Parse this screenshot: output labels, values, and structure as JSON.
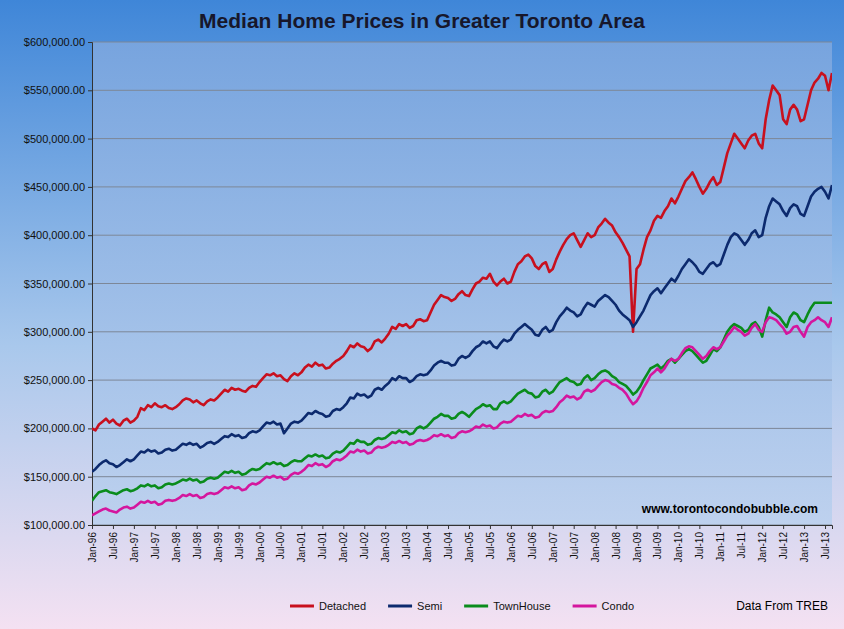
{
  "chart_data": {
    "type": "line",
    "title": "Median Home Prices in Greater Toronto Area",
    "annotations": [
      "www.torontocondobubble.com",
      "Data From TREB"
    ],
    "grid": true,
    "legend": "bottom",
    "ylim": [
      100000,
      600000
    ],
    "yticks": [
      {
        "value": 100000,
        "label": "$100,000.00"
      },
      {
        "value": 150000,
        "label": "$150,000.00"
      },
      {
        "value": 200000,
        "label": "$200,000.00"
      },
      {
        "value": 250000,
        "label": "$250,000.00"
      },
      {
        "value": 300000,
        "label": "$300,000.00"
      },
      {
        "value": 350000,
        "label": "$350,000.00"
      },
      {
        "value": 400000,
        "label": "$400,000.00"
      },
      {
        "value": 450000,
        "label": "$450,000.00"
      },
      {
        "value": 500000,
        "label": "$500,000.00"
      },
      {
        "value": 550000,
        "label": "$550,000.00"
      },
      {
        "value": 600000,
        "label": "$600,000.00"
      }
    ],
    "categories": [
      "Jan-96",
      null,
      null,
      null,
      null,
      null,
      "Jul-96",
      null,
      null,
      null,
      null,
      null,
      "Jan-97",
      null,
      null,
      null,
      null,
      null,
      "Jul-97",
      null,
      null,
      null,
      null,
      null,
      "Jan-98",
      null,
      null,
      null,
      null,
      null,
      "Jul-98",
      null,
      null,
      null,
      null,
      null,
      "Jan-99",
      null,
      null,
      null,
      null,
      null,
      "Jul-99",
      null,
      null,
      null,
      null,
      null,
      "Jan-00",
      null,
      null,
      null,
      null,
      null,
      "Jul-00",
      null,
      null,
      null,
      null,
      null,
      "Jan-01",
      null,
      null,
      null,
      null,
      null,
      "Jul-01",
      null,
      null,
      null,
      null,
      null,
      "Jan-02",
      null,
      null,
      null,
      null,
      null,
      "Jul-02",
      null,
      null,
      null,
      null,
      null,
      "Jan-03",
      null,
      null,
      null,
      null,
      null,
      "Jul-03",
      null,
      null,
      null,
      null,
      null,
      "Jan-04",
      null,
      null,
      null,
      null,
      null,
      "Jul-04",
      null,
      null,
      null,
      null,
      null,
      "Jan-05",
      null,
      null,
      null,
      null,
      null,
      "Jul-05",
      null,
      null,
      null,
      null,
      null,
      "Jan-06",
      null,
      null,
      null,
      null,
      null,
      "Jul-06",
      null,
      null,
      null,
      null,
      null,
      "Jan-07",
      null,
      null,
      null,
      null,
      null,
      "Jul-07",
      null,
      null,
      null,
      null,
      null,
      "Jan-08",
      null,
      null,
      null,
      null,
      null,
      "Jul-08",
      null,
      null,
      null,
      null,
      null,
      "Jan-09",
      null,
      null,
      null,
      null,
      null,
      "Jul-09",
      null,
      null,
      null,
      null,
      null,
      "Jan-10",
      null,
      null,
      null,
      null,
      null,
      "Jul-10",
      null,
      null,
      null,
      null,
      null,
      "Jan-11",
      null,
      null,
      null,
      null,
      null,
      "Jul-11",
      null,
      null,
      null,
      null,
      null,
      "Jan-12",
      null,
      null,
      null,
      null,
      null,
      "Jul-12",
      null,
      null,
      null,
      null,
      null,
      "Jan-13",
      null,
      null,
      null,
      null,
      null,
      "Jul-13",
      null,
      null
    ],
    "series": [
      {
        "name": "Detached",
        "color": "#c8101e",
        "values": [
          200000,
          198000,
          204000,
          207000,
          210000,
          206000,
          209000,
          205000,
          203000,
          208000,
          210000,
          206000,
          208000,
          212000,
          221000,
          219000,
          224000,
          222000,
          226000,
          223000,
          222000,
          224000,
          221000,
          220000,
          222000,
          225000,
          229000,
          231000,
          230000,
          227000,
          229000,
          226000,
          224000,
          228000,
          230000,
          229000,
          232000,
          236000,
          240000,
          238000,
          242000,
          240000,
          241000,
          239000,
          238000,
          242000,
          244000,
          243000,
          248000,
          252000,
          256000,
          255000,
          257000,
          254000,
          255000,
          251000,
          249000,
          254000,
          257000,
          255000,
          258000,
          263000,
          266000,
          264000,
          268000,
          265000,
          266000,
          262000,
          263000,
          267000,
          270000,
          272000,
          275000,
          280000,
          286000,
          284000,
          288000,
          285000,
          284000,
          280000,
          283000,
          290000,
          292000,
          289000,
          293000,
          298000,
          305000,
          303000,
          308000,
          306000,
          308000,
          304000,
          306000,
          312000,
          313000,
          311000,
          312000,
          320000,
          328000,
          333000,
          338000,
          336000,
          335000,
          332000,
          334000,
          339000,
          342000,
          338000,
          337000,
          344000,
          350000,
          352000,
          356000,
          355000,
          360000,
          352000,
          348000,
          352000,
          355000,
          350000,
          352000,
          362000,
          370000,
          373000,
          378000,
          380000,
          376000,
          368000,
          365000,
          370000,
          372000,
          362000,
          365000,
          375000,
          383000,
          390000,
          396000,
          400000,
          402000,
          395000,
          388000,
          395000,
          402000,
          398000,
          400000,
          408000,
          412000,
          417000,
          413000,
          410000,
          403000,
          398000,
          392000,
          385000,
          378000,
          300000,
          365000,
          370000,
          385000,
          398000,
          405000,
          415000,
          420000,
          418000,
          425000,
          430000,
          438000,
          433000,
          440000,
          448000,
          456000,
          460000,
          465000,
          458000,
          450000,
          443000,
          448000,
          455000,
          460000,
          452000,
          455000,
          470000,
          485000,
          495000,
          505000,
          500000,
          495000,
          490000,
          498000,
          503000,
          505000,
          495000,
          490000,
          520000,
          540000,
          555000,
          550000,
          545000,
          520000,
          515000,
          530000,
          535000,
          530000,
          518000,
          520000,
          535000,
          550000,
          558000,
          562000,
          568000,
          565000,
          550000,
          568000
        ]
      },
      {
        "name": "Semi",
        "color": "#0c2a6e",
        "values": [
          155000,
          158000,
          162000,
          165000,
          167000,
          164000,
          163000,
          160000,
          162000,
          165000,
          168000,
          166000,
          168000,
          172000,
          176000,
          175000,
          178000,
          176000,
          177000,
          174000,
          175000,
          178000,
          179000,
          177000,
          178000,
          181000,
          184000,
          183000,
          185000,
          183000,
          184000,
          180000,
          182000,
          185000,
          186000,
          184000,
          186000,
          189000,
          192000,
          191000,
          194000,
          192000,
          193000,
          190000,
          191000,
          195000,
          197000,
          196000,
          198000,
          202000,
          206000,
          205000,
          207000,
          204000,
          205000,
          195000,
          200000,
          205000,
          207000,
          206000,
          208000,
          212000,
          216000,
          215000,
          218000,
          216000,
          215000,
          212000,
          213000,
          218000,
          220000,
          219000,
          222000,
          226000,
          232000,
          231000,
          236000,
          234000,
          235000,
          232000,
          234000,
          240000,
          242000,
          240000,
          244000,
          247000,
          252000,
          250000,
          254000,
          252000,
          252000,
          248000,
          250000,
          254000,
          256000,
          255000,
          256000,
          260000,
          265000,
          268000,
          270000,
          268000,
          268000,
          265000,
          266000,
          272000,
          275000,
          273000,
          275000,
          280000,
          284000,
          286000,
          290000,
          288000,
          290000,
          285000,
          283000,
          288000,
          292000,
          290000,
          292000,
          298000,
          302000,
          305000,
          308000,
          305000,
          302000,
          297000,
          296000,
          302000,
          305000,
          300000,
          302000,
          310000,
          316000,
          320000,
          325000,
          322000,
          320000,
          316000,
          318000,
          325000,
          330000,
          328000,
          326000,
          332000,
          335000,
          338000,
          336000,
          332000,
          328000,
          322000,
          318000,
          315000,
          312000,
          305000,
          310000,
          316000,
          322000,
          330000,
          338000,
          342000,
          345000,
          340000,
          345000,
          350000,
          355000,
          352000,
          358000,
          365000,
          370000,
          375000,
          372000,
          368000,
          362000,
          360000,
          365000,
          370000,
          372000,
          368000,
          370000,
          380000,
          390000,
          398000,
          402000,
          400000,
          395000,
          390000,
          395000,
          402000,
          405000,
          398000,
          400000,
          418000,
          430000,
          438000,
          435000,
          432000,
          425000,
          420000,
          428000,
          432000,
          430000,
          422000,
          420000,
          430000,
          440000,
          445000,
          448000,
          450000,
          445000,
          438000,
          452000
        ]
      },
      {
        "name": "TownHouse",
        "color": "#0a8c1c",
        "values": [
          125000,
          130000,
          134000,
          135000,
          136000,
          134000,
          133000,
          132000,
          134000,
          136000,
          137000,
          135000,
          136000,
          138000,
          141000,
          140000,
          142000,
          140000,
          141000,
          138000,
          139000,
          142000,
          143000,
          142000,
          143000,
          145000,
          147000,
          146000,
          148000,
          146000,
          147000,
          144000,
          145000,
          148000,
          149000,
          148000,
          149000,
          152000,
          155000,
          154000,
          156000,
          154000,
          155000,
          152000,
          153000,
          156000,
          158000,
          157000,
          158000,
          161000,
          164000,
          163000,
          165000,
          163000,
          164000,
          161000,
          162000,
          165000,
          167000,
          166000,
          166000,
          169000,
          172000,
          171000,
          173000,
          171000,
          172000,
          169000,
          170000,
          174000,
          176000,
          175000,
          177000,
          181000,
          185000,
          184000,
          188000,
          186000,
          186000,
          183000,
          184000,
          188000,
          190000,
          189000,
          190000,
          193000,
          196000,
          195000,
          198000,
          196000,
          197000,
          194000,
          195000,
          200000,
          202000,
          200000,
          202000,
          206000,
          210000,
          212000,
          215000,
          213000,
          213000,
          210000,
          211000,
          215000,
          217000,
          215000,
          212000,
          216000,
          220000,
          222000,
          225000,
          223000,
          224000,
          220000,
          220000,
          226000,
          228000,
          226000,
          228000,
          232000,
          236000,
          238000,
          240000,
          237000,
          236000,
          232000,
          233000,
          238000,
          240000,
          236000,
          238000,
          243000,
          248000,
          250000,
          252000,
          249000,
          248000,
          245000,
          246000,
          252000,
          255000,
          250000,
          252000,
          256000,
          259000,
          260000,
          258000,
          254000,
          252000,
          248000,
          246000,
          244000,
          240000,
          235000,
          238000,
          243000,
          250000,
          256000,
          262000,
          264000,
          266000,
          262000,
          265000,
          270000,
          272000,
          268000,
          272000,
          276000,
          280000,
          282000,
          280000,
          276000,
          272000,
          268000,
          270000,
          276000,
          282000,
          280000,
          284000,
          292000,
          300000,
          305000,
          308000,
          306000,
          304000,
          300000,
          302000,
          308000,
          310000,
          305000,
          295000,
          312000,
          325000,
          320000,
          318000,
          315000,
          310000,
          305000,
          315000,
          320000,
          318000,
          312000,
          310000,
          318000,
          325000,
          330000,
          330000,
          330000,
          330000,
          330000,
          330000
        ]
      },
      {
        "name": "Condo",
        "color": "#d4169e",
        "values": [
          110000,
          112000,
          114000,
          116000,
          117000,
          115000,
          114000,
          113000,
          116000,
          118000,
          119000,
          117000,
          118000,
          121000,
          124000,
          123000,
          125000,
          123000,
          124000,
          121000,
          122000,
          125000,
          126000,
          125000,
          126000,
          128000,
          131000,
          130000,
          132000,
          130000,
          131000,
          128000,
          129000,
          132000,
          133000,
          132000,
          133000,
          136000,
          139000,
          138000,
          140000,
          138000,
          139000,
          136000,
          137000,
          141000,
          143000,
          142000,
          144000,
          147000,
          150000,
          149000,
          151000,
          149000,
          150000,
          147000,
          148000,
          152000,
          154000,
          153000,
          155000,
          158000,
          162000,
          161000,
          164000,
          162000,
          163000,
          160000,
          162000,
          166000,
          168000,
          167000,
          169000,
          172000,
          176000,
          175000,
          178000,
          176000,
          177000,
          174000,
          175000,
          179000,
          181000,
          180000,
          181000,
          183000,
          186000,
          185000,
          187000,
          185000,
          186000,
          183000,
          184000,
          187000,
          188000,
          187000,
          188000,
          190000,
          193000,
          192000,
          194000,
          192000,
          193000,
          190000,
          191000,
          195000,
          197000,
          196000,
          197000,
          199000,
          202000,
          201000,
          204000,
          202000,
          203000,
          200000,
          201000,
          205000,
          207000,
          206000,
          207000,
          210000,
          213000,
          212000,
          215000,
          213000,
          214000,
          211000,
          212000,
          216000,
          218000,
          217000,
          218000,
          222000,
          227000,
          230000,
          234000,
          232000,
          233000,
          230000,
          232000,
          238000,
          240000,
          238000,
          240000,
          244000,
          248000,
          250000,
          249000,
          246000,
          245000,
          242000,
          240000,
          236000,
          230000,
          225000,
          228000,
          234000,
          242000,
          248000,
          255000,
          258000,
          262000,
          258000,
          262000,
          268000,
          272000,
          270000,
          272000,
          278000,
          283000,
          285000,
          284000,
          280000,
          276000,
          272000,
          275000,
          280000,
          284000,
          282000,
          284000,
          290000,
          296000,
          300000,
          305000,
          302000,
          300000,
          296000,
          298000,
          304000,
          308000,
          302000,
          300000,
          310000,
          315000,
          314000,
          312000,
          308000,
          304000,
          298000,
          300000,
          305000,
          306000,
          300000,
          295000,
          305000,
          310000,
          312000,
          315000,
          312000,
          310000,
          305000,
          315000
        ]
      }
    ]
  }
}
